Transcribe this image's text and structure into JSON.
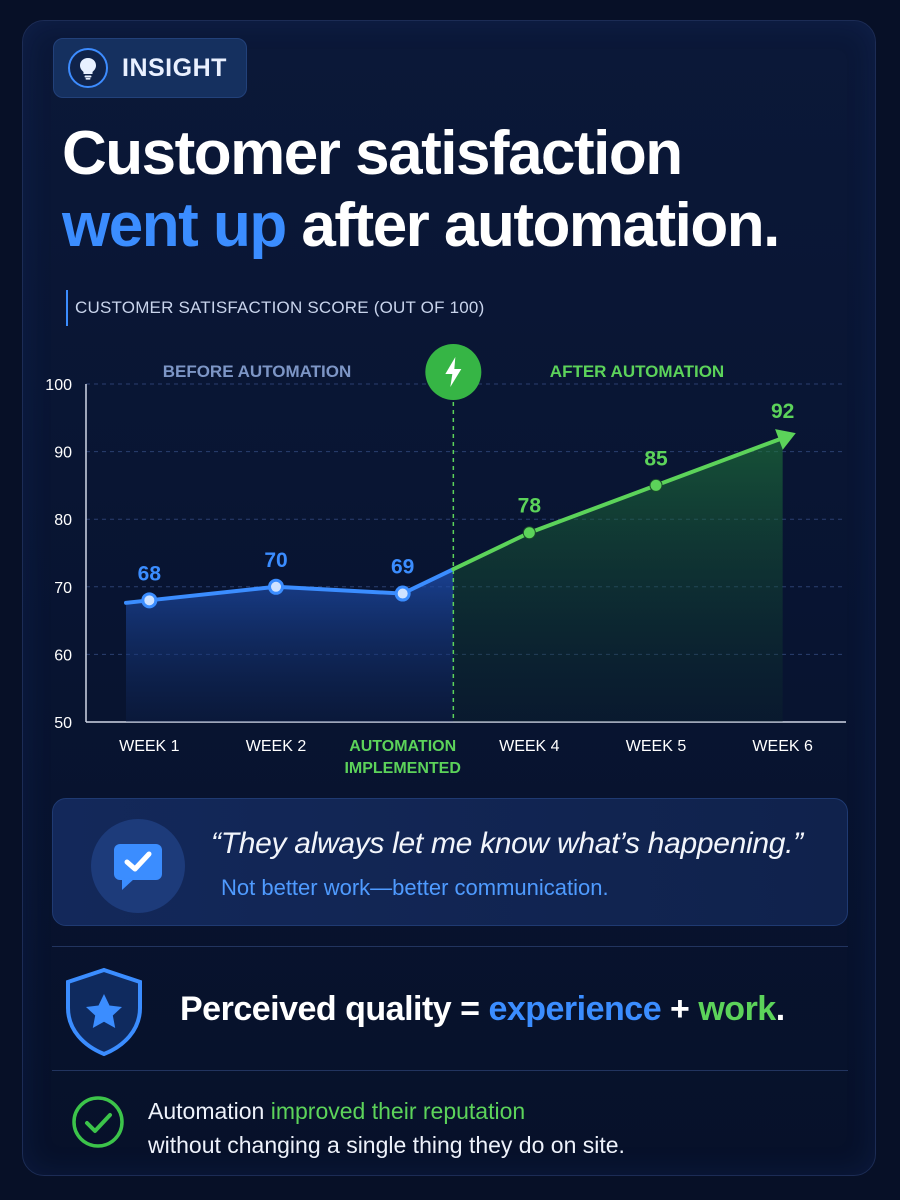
{
  "badge": {
    "label": "INSIGHT",
    "icon": "lightbulb-icon"
  },
  "headline": {
    "line1": "Customer satisfaction",
    "accent": "went up",
    "rest": " after automation."
  },
  "chart_caption": "CUSTOMER SATISFACTION SCORE (OUT OF 100)",
  "chart_data": {
    "type": "line",
    "ylim": [
      50,
      100
    ],
    "yticks": [
      50,
      60,
      70,
      80,
      90,
      100
    ],
    "grid": true,
    "categories": [
      "WEEK 1",
      "WEEK 2",
      "AUTOMATION IMPLEMENTED",
      "WEEK 4",
      "WEEK 5",
      "WEEK 6"
    ],
    "category_lines": [
      [
        "WEEK 1"
      ],
      [
        "WEEK 2"
      ],
      [
        "AUTOMATION",
        "IMPLEMENTED"
      ],
      [
        "WEEK 4"
      ],
      [
        "WEEK 5"
      ],
      [
        "WEEK 6"
      ]
    ],
    "regions": {
      "before": "BEFORE AUTOMATION",
      "after": "AFTER AUTOMATION"
    },
    "series": [
      {
        "segment": "before",
        "color": "#3b8dff",
        "points": [
          {
            "x": "WEEK 1",
            "y": 68,
            "label": "68"
          },
          {
            "x": "WEEK 2",
            "y": 70,
            "label": "70"
          },
          {
            "x": "AUTOMATION IMPLEMENTED",
            "y": 69,
            "label": "69"
          }
        ]
      },
      {
        "segment": "after",
        "color": "#5cd35a",
        "points": [
          {
            "x": "WEEK 4",
            "y": 78,
            "label": "78"
          },
          {
            "x": "WEEK 5",
            "y": 85,
            "label": "85"
          },
          {
            "x": "WEEK 6",
            "y": 92,
            "label": "92"
          }
        ]
      }
    ],
    "marker": {
      "icon": "lightning-icon",
      "color": "#3cc44a"
    }
  },
  "quote": {
    "text": "“They always let me know what’s happening.”",
    "sub": "Not better work—better communication.",
    "icon": "chat-check-icon"
  },
  "equation": {
    "prefix": "Perceived quality = ",
    "experience": "experience",
    "plus": " + ",
    "work": "work",
    "suffix": ".",
    "icon": "shield-star-icon"
  },
  "footer": {
    "pre": "Automation ",
    "highlight": "improved their reputation",
    "line2": "without changing a single thing they do on site.",
    "icon": "check-circle-icon"
  },
  "colors": {
    "blue": "#3b8dff",
    "green": "#5cd35a",
    "background": "#071027"
  }
}
